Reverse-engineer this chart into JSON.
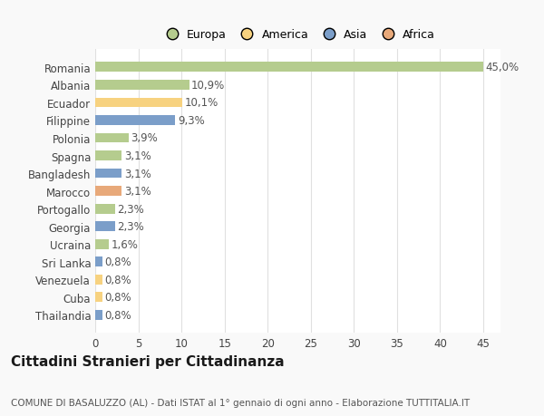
{
  "countries": [
    "Romania",
    "Albania",
    "Ecuador",
    "Filippine",
    "Polonia",
    "Spagna",
    "Bangladesh",
    "Marocco",
    "Portogallo",
    "Georgia",
    "Ucraina",
    "Sri Lanka",
    "Venezuela",
    "Cuba",
    "Thailandia"
  ],
  "values": [
    45.0,
    10.9,
    10.1,
    9.3,
    3.9,
    3.1,
    3.1,
    3.1,
    2.3,
    2.3,
    1.6,
    0.8,
    0.8,
    0.8,
    0.8
  ],
  "labels": [
    "45,0%",
    "10,9%",
    "10,1%",
    "9,3%",
    "3,9%",
    "3,1%",
    "3,1%",
    "3,1%",
    "2,3%",
    "2,3%",
    "1,6%",
    "0,8%",
    "0,8%",
    "0,8%",
    "0,8%"
  ],
  "colors": [
    "#b5cc8e",
    "#b5cc8e",
    "#f7d280",
    "#7b9ec9",
    "#b5cc8e",
    "#b5cc8e",
    "#7b9ec9",
    "#e8a97a",
    "#b5cc8e",
    "#7b9ec9",
    "#b5cc8e",
    "#7b9ec9",
    "#f7d280",
    "#f7d280",
    "#7b9ec9"
  ],
  "legend_labels": [
    "Europa",
    "America",
    "Asia",
    "Africa"
  ],
  "legend_colors": [
    "#b5cc8e",
    "#f7d280",
    "#7b9ec9",
    "#e8a97a"
  ],
  "title": "Cittadini Stranieri per Cittadinanza",
  "subtitle": "COMUNE DI BASALUZZO (AL) - Dati ISTAT al 1° gennaio di ogni anno - Elaborazione TUTTITALIA.IT",
  "xlim": [
    0,
    47
  ],
  "xticks": [
    0,
    5,
    10,
    15,
    20,
    25,
    30,
    35,
    40,
    45
  ],
  "background_color": "#f9f9f9",
  "plot_bg_color": "#ffffff",
  "grid_color": "#e0e0e0",
  "bar_height": 0.55,
  "title_fontsize": 11,
  "subtitle_fontsize": 7.5,
  "label_fontsize": 8.5,
  "tick_fontsize": 8.5,
  "legend_fontsize": 9
}
